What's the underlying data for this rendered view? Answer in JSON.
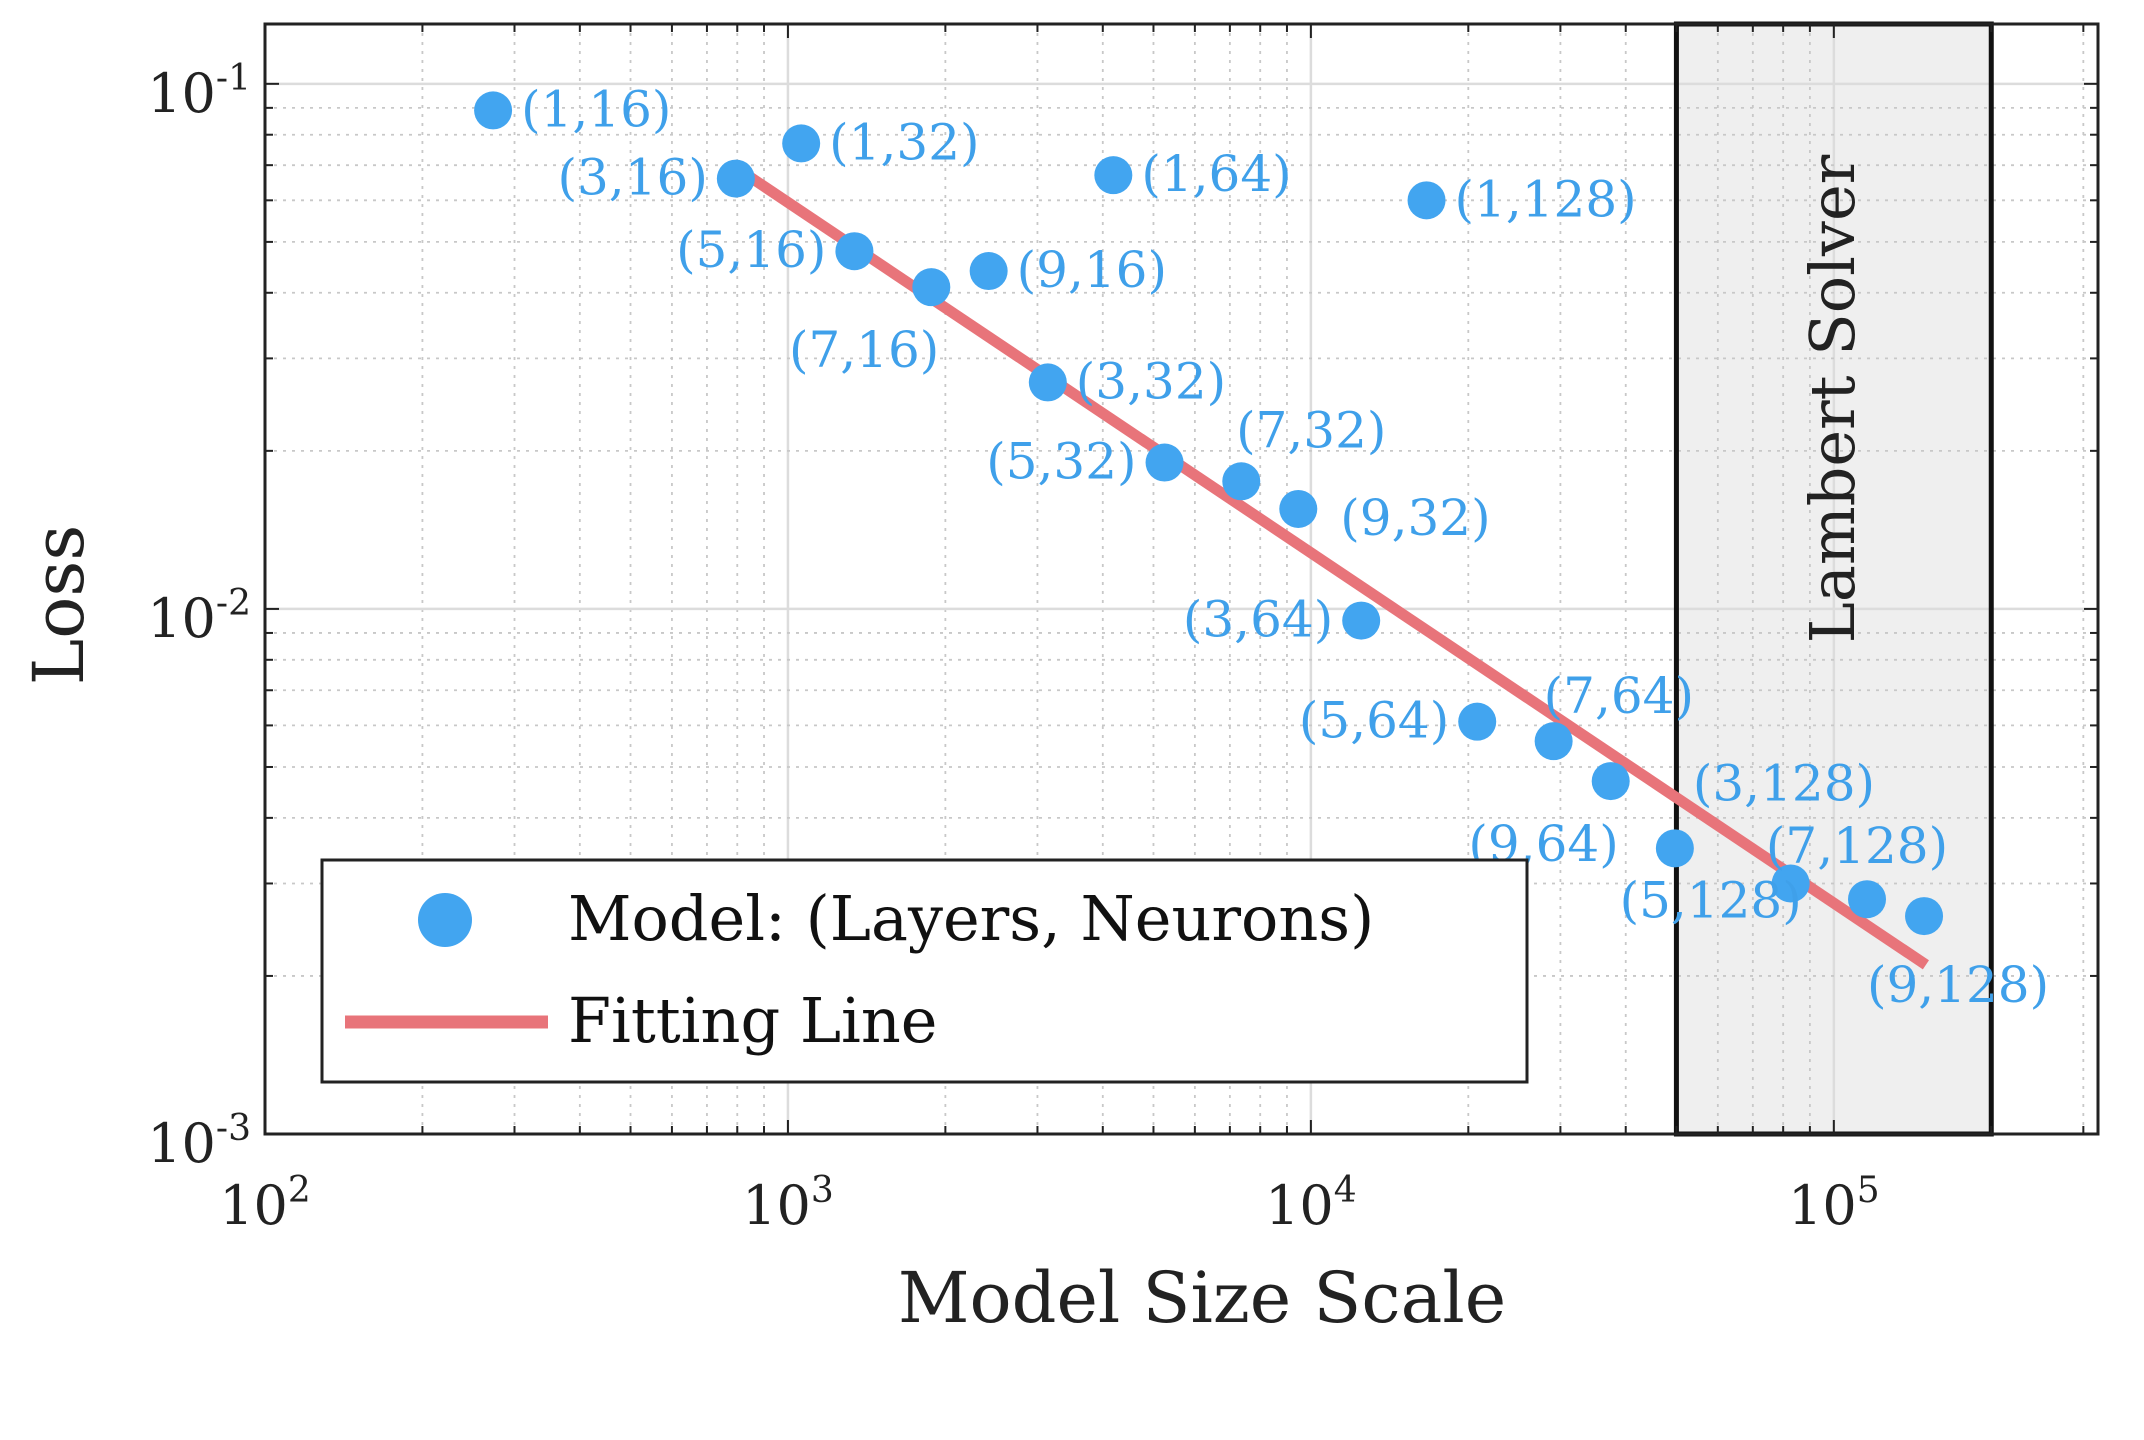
{
  "chart_data": {
    "type": "scatter",
    "title": "",
    "xlabel": "Model Size Scale",
    "ylabel": "Loss",
    "xscale": "log",
    "yscale": "log",
    "xlim": [
      100,
      320000
    ],
    "ylim": [
      0.001,
      0.13
    ],
    "x_ticks": [
      {
        "base": "10",
        "exp": "2"
      },
      {
        "base": "10",
        "exp": "3"
      },
      {
        "base": "10",
        "exp": "4"
      },
      {
        "base": "10",
        "exp": "5"
      }
    ],
    "y_ticks": [
      {
        "base": "10",
        "exp": "-1"
      },
      {
        "base": "10",
        "exp": "-2"
      },
      {
        "base": "10",
        "exp": "-3"
      }
    ],
    "grid": true,
    "colors": {
      "points": "#42a5f0",
      "labels": "#3fa0ea",
      "fit_line": "#e8747a",
      "region_fill": "#efefef"
    },
    "series": [
      {
        "name": "Model: (Layers, Neurons)",
        "type": "scatter",
        "points": [
          {
            "label": "(1,16)",
            "x": 273,
            "y": 0.089
          },
          {
            "label": "(1,32)",
            "x": 1060,
            "y": 0.077
          },
          {
            "label": "(3,16)",
            "x": 795,
            "y": 0.066
          },
          {
            "label": "(1,64)",
            "x": 4190,
            "y": 0.067
          },
          {
            "label": "(1,128)",
            "x": 16640,
            "y": 0.06
          },
          {
            "label": "(5,16)",
            "x": 1340,
            "y": 0.048
          },
          {
            "label": "(7,16)",
            "x": 1880,
            "y": 0.041
          },
          {
            "label": "(9,16)",
            "x": 2420,
            "y": 0.044
          },
          {
            "label": "(3,32)",
            "x": 3140,
            "y": 0.027
          },
          {
            "label": "(5,32)",
            "x": 5250,
            "y": 0.019
          },
          {
            "label": "(7,32)",
            "x": 7360,
            "y": 0.0175
          },
          {
            "label": "(9,32)",
            "x": 9460,
            "y": 0.0155
          },
          {
            "label": "(3,64)",
            "x": 12480,
            "y": 0.0095
          },
          {
            "label": "(5,64)",
            "x": 20800,
            "y": 0.0061
          },
          {
            "label": "(7,64)",
            "x": 29120,
            "y": 0.0056
          },
          {
            "label": "(9,64)",
            "x": 37440,
            "y": 0.0047
          },
          {
            "label": "(3,128)",
            "x": 49660,
            "y": 0.0035
          },
          {
            "label": "(5,128)",
            "x": 82690,
            "y": 0.003
          },
          {
            "label": "(7,128)",
            "x": 115730,
            "y": 0.0028
          },
          {
            "label": "(9,128)",
            "x": 148770,
            "y": 0.0026
          }
        ]
      },
      {
        "name": "Fitting Line",
        "type": "line",
        "points": [
          {
            "x": 800,
            "y": 0.069
          },
          {
            "x": 150000,
            "y": 0.0021
          }
        ]
      }
    ],
    "shaded_region": {
      "label": "Lambert Solver",
      "x_from": 50000,
      "x_to": 200000
    },
    "legend": {
      "position": "bottom-left",
      "entries": [
        "Model: (Layers, Neurons)",
        "Fitting Line"
      ]
    }
  }
}
